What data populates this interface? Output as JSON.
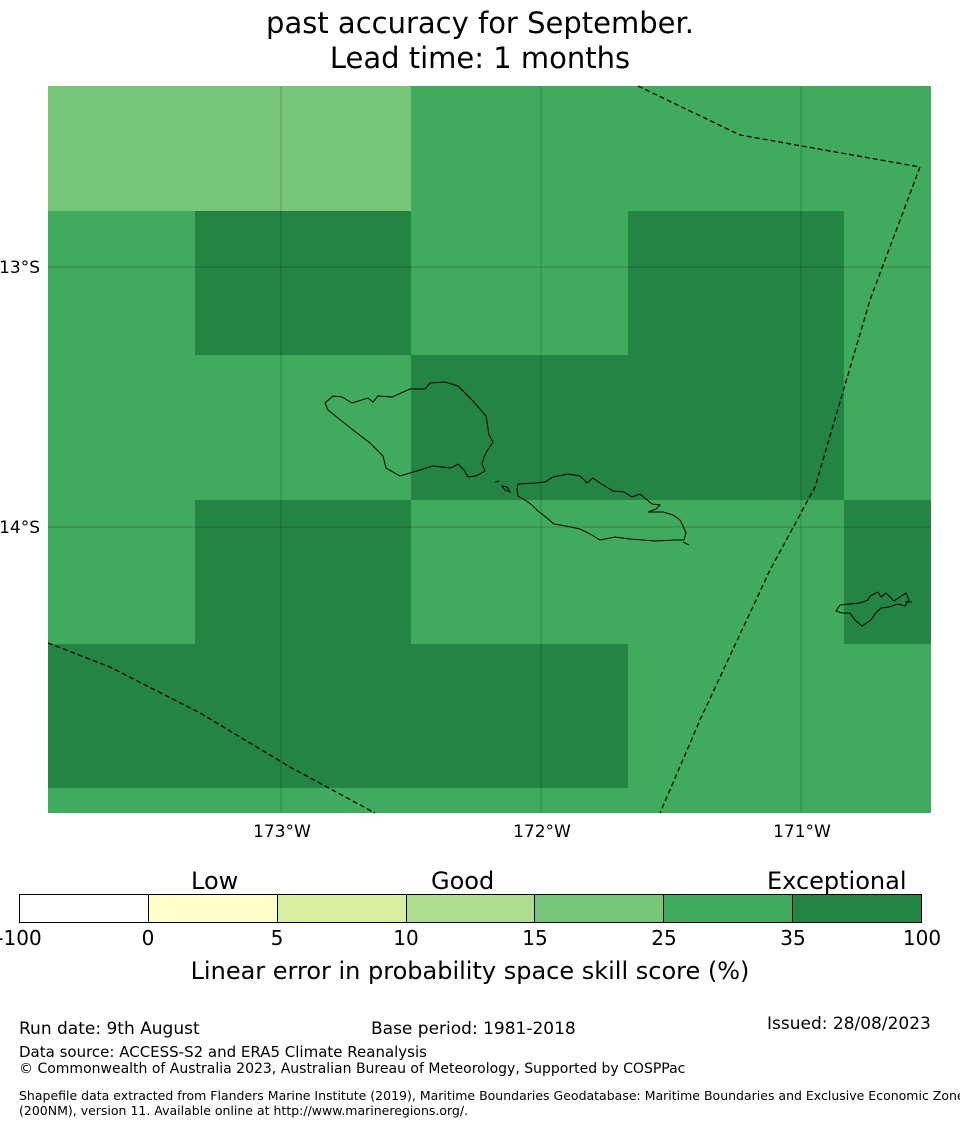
{
  "title": {
    "line1": "past accuracy for September.",
    "line2": "Lead time: 1 months"
  },
  "map": {
    "lon_ticks": [
      "173°W",
      "172°W",
      "171°W"
    ],
    "lat_ticks": [
      "13°S",
      "14°S"
    ],
    "colors": {
      "c15_25": "#78c679",
      "c25_35": "#41ab5d",
      "c35_100": "#238443"
    },
    "grid": [
      [
        "c15_25",
        "c15_25",
        "c25_35",
        "c25_35",
        "c25_35",
        "c25_35"
      ],
      [
        "c25_35",
        "c35_100",
        "c25_35",
        "c35_100",
        "c35_100",
        "c25_35"
      ],
      [
        "c25_35",
        "c25_35",
        "c35_100",
        "c35_100",
        "c35_100",
        "c25_35"
      ],
      [
        "c25_35",
        "c35_100",
        "c25_35",
        "c25_35",
        "c25_35",
        "c35_100"
      ],
      [
        "c35_100",
        "c35_100",
        "c35_100",
        "c25_35",
        "c25_35",
        "c25_35"
      ],
      [
        "c25_35",
        "c25_35",
        "c25_35",
        "c25_35",
        "c25_35",
        "c25_35"
      ]
    ],
    "features": [
      "eez-boundary-dashed",
      "island-coastlines"
    ]
  },
  "colorbar": {
    "categories": [
      "Low",
      "Good",
      "Exceptional"
    ],
    "ticks": [
      "-100",
      "0",
      "5",
      "10",
      "15",
      "25",
      "35",
      "100"
    ],
    "colors": [
      "#ffffff",
      "#ffffcc",
      "#d9f0a3",
      "#addd8e",
      "#78c679",
      "#41ab5d",
      "#238443"
    ],
    "label": "Linear error in probability space skill score (%)"
  },
  "footer": {
    "run_date": "Run date: 9th August",
    "base_period": "Base period: 1981-2018",
    "issued": "Issued: 28/08/2023",
    "data_source": "Data source: ACCESS-S2 and ERA5 Climate Reanalysis",
    "copyright": "© Commonwealth of Australia 2023, Australian Bureau of Meteorology, Supported by COSPPac",
    "shapefile_line1": "Shapefile data extracted from Flanders Marine Institute (2019), Maritime Boundaries Geodatabase: Maritime Boundaries and Exclusive Economic Zones",
    "shapefile_line2": "(200NM), version 11. Available online at http://www.marineregions.org/."
  }
}
